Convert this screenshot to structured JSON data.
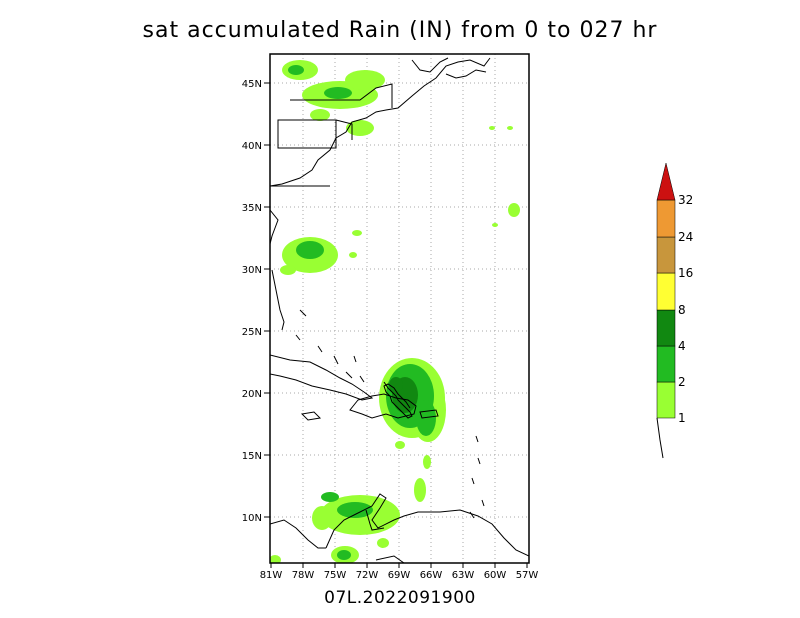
{
  "title": "sat accumulated Rain (IN) from 0 to 027 hr",
  "footer": "07L.2022091900",
  "map": {
    "lat_ticks": [
      "45N",
      "40N",
      "35N",
      "30N",
      "25N",
      "20N",
      "15N",
      "10N"
    ],
    "lon_ticks": [
      "81W",
      "78W",
      "75W",
      "72W",
      "69W",
      "66W",
      "63W",
      "60W",
      "57W"
    ]
  },
  "colorbar": {
    "labels": [
      "1",
      "2",
      "4",
      "8",
      "16",
      "24",
      "32"
    ],
    "colors": [
      "#99ff33",
      "#22bb22",
      "#118811",
      "#ffff33",
      "#c8963c",
      "#ee9933",
      "#cc1111"
    ]
  }
}
